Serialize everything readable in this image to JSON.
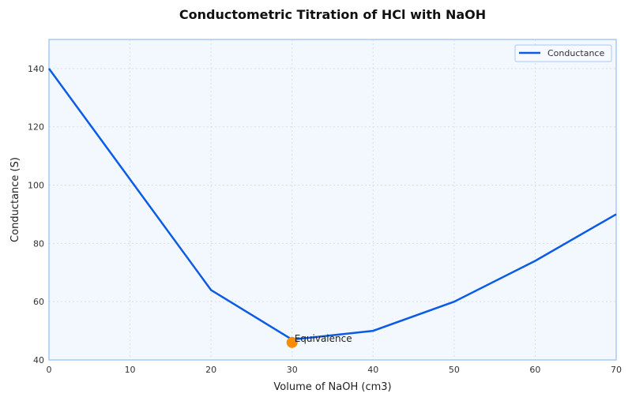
{
  "chart_data": {
    "type": "line",
    "title": "Conductometric Titration of HCl with NaOH",
    "xlabel": "Volume of NaOH (cm3)",
    "ylabel": "Conductance (S)",
    "xlim": [
      0,
      70
    ],
    "ylim": [
      40,
      150
    ],
    "xticks": [
      0,
      10,
      20,
      30,
      40,
      50,
      60,
      70
    ],
    "yticks": [
      40,
      60,
      80,
      100,
      120,
      140
    ],
    "grid": true,
    "legend_position": "top-right",
    "series": [
      {
        "name": "Conductance",
        "color": "#0a5ce6",
        "x": [
          0,
          20,
          30,
          40,
          50,
          60,
          70
        ],
        "y": [
          140,
          64,
          47,
          50,
          60,
          74,
          90
        ]
      }
    ],
    "annotations": [
      {
        "text": "Equivalence",
        "x": 30,
        "y": 46,
        "color": "#ff8c00"
      }
    ],
    "colors": {
      "background": "#f3f8ff",
      "frame": "#a8c8f5"
    }
  }
}
